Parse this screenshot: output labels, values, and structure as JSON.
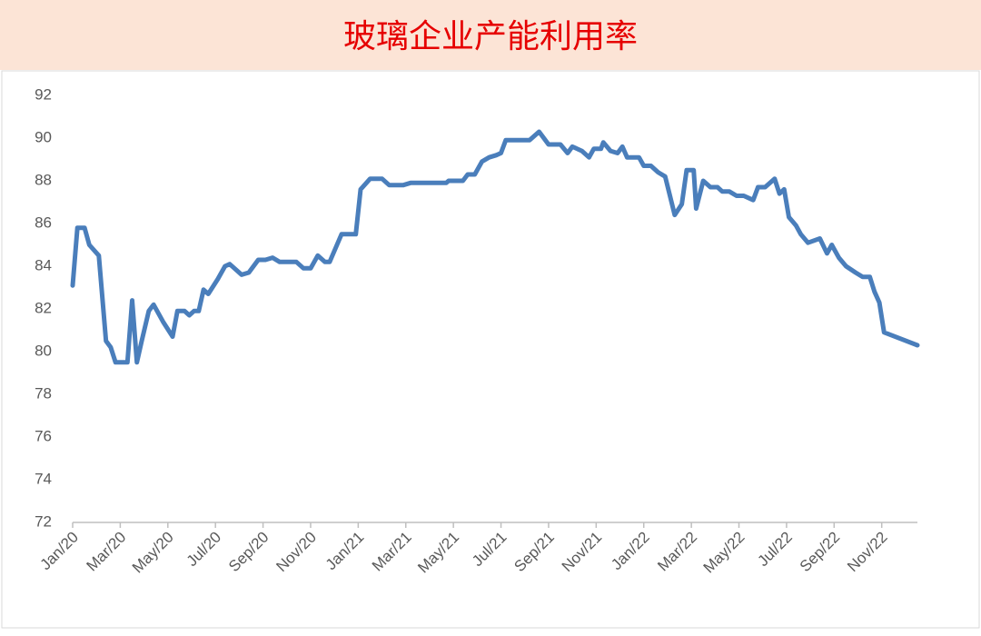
{
  "chart_data": {
    "type": "line",
    "title": "玻璃企业产能利用率",
    "series": [
      {
        "name": "玻璃企业产能利用率",
        "color": "#4a7ebb",
        "x": [
          0,
          0.2,
          0.5,
          0.7,
          1.1,
          1.4,
          1.6,
          1.8,
          2.3,
          2.5,
          2.7,
          2.9,
          3.2,
          3.4,
          3.8,
          4.2,
          4.4,
          4.7,
          4.9,
          5.1,
          5.3,
          5.5,
          5.7,
          6.1,
          6.4,
          6.6,
          7.1,
          7.4,
          7.8,
          8.1,
          8.4,
          8.7,
          9.4,
          9.7,
          10.0,
          10.3,
          10.6,
          10.8,
          11.3,
          11.9,
          12.1,
          12.5,
          13.0,
          13.3,
          13.9,
          14.2,
          15.7,
          15.8,
          16.4,
          16.6,
          16.9,
          17.2,
          17.5,
          17.8,
          18.0,
          18.2,
          19.2,
          19.6,
          20.0,
          20.5,
          20.8,
          21.0,
          21.4,
          21.7,
          21.9,
          22.2,
          22.3,
          22.6,
          22.9,
          23.1,
          23.3,
          23.8,
          24.0,
          24.3,
          24.6,
          24.9,
          25.3,
          25.6,
          25.8,
          26.1,
          26.2,
          26.5,
          26.8,
          27.1,
          27.3,
          27.6,
          27.9,
          28.2,
          28.6,
          28.8,
          29.1,
          29.5,
          29.7,
          29.9,
          30.1,
          30.4,
          30.6,
          30.9,
          31.4,
          31.7,
          31.9,
          32.2,
          32.5,
          32.9,
          33.2,
          33.5,
          33.7,
          33.9,
          34.1,
          35.5
        ],
        "values": [
          83.1,
          85.8,
          85.8,
          85.0,
          84.5,
          80.5,
          80.2,
          79.5,
          79.5,
          82.4,
          79.5,
          80.5,
          81.9,
          82.2,
          81.4,
          80.7,
          81.9,
          81.9,
          81.7,
          81.9,
          81.9,
          82.9,
          82.7,
          83.4,
          84.0,
          84.1,
          83.6,
          83.7,
          84.3,
          84.3,
          84.4,
          84.2,
          84.2,
          83.9,
          83.9,
          84.5,
          84.2,
          84.2,
          85.5,
          85.5,
          87.6,
          88.1,
          88.1,
          87.8,
          87.8,
          87.9,
          87.9,
          88.0,
          88.0,
          88.3,
          88.3,
          88.9,
          89.1,
          89.2,
          89.3,
          89.9,
          89.9,
          90.3,
          89.7,
          89.7,
          89.3,
          89.6,
          89.4,
          89.1,
          89.5,
          89.5,
          89.8,
          89.4,
          89.3,
          89.6,
          89.1,
          89.1,
          88.7,
          88.7,
          88.4,
          88.2,
          86.4,
          86.9,
          88.5,
          88.5,
          86.7,
          88.0,
          87.7,
          87.7,
          87.5,
          87.5,
          87.3,
          87.3,
          87.1,
          87.7,
          87.7,
          88.1,
          87.4,
          87.6,
          86.3,
          85.9,
          85.5,
          85.1,
          85.3,
          84.6,
          85.0,
          84.4,
          84.0,
          83.7,
          83.5,
          83.5,
          82.8,
          82.3,
          80.9,
          80.3
        ]
      }
    ],
    "xlim": [
      0,
      35.5
    ],
    "xticks": [
      {
        "value": 0,
        "label": "Jan/20"
      },
      {
        "value": 2,
        "label": "Mar/20"
      },
      {
        "value": 4,
        "label": "May/20"
      },
      {
        "value": 6,
        "label": "Jul/20"
      },
      {
        "value": 8,
        "label": "Sep/20"
      },
      {
        "value": 10,
        "label": "Nov/20"
      },
      {
        "value": 12,
        "label": "Jan/21"
      },
      {
        "value": 14,
        "label": "Mar/21"
      },
      {
        "value": 16,
        "label": "May/21"
      },
      {
        "value": 18,
        "label": "Jul/21"
      },
      {
        "value": 20,
        "label": "Sep/21"
      },
      {
        "value": 22,
        "label": "Nov/21"
      },
      {
        "value": 24,
        "label": "Jan/22"
      },
      {
        "value": 26,
        "label": "Mar/22"
      },
      {
        "value": 28,
        "label": "May/22"
      },
      {
        "value": 30,
        "label": "Jul/22"
      },
      {
        "value": 32,
        "label": "Sep/22"
      },
      {
        "value": 34,
        "label": "Nov/22"
      }
    ],
    "ylim": [
      72,
      92
    ],
    "yticks": [
      72,
      74,
      76,
      78,
      80,
      82,
      84,
      86,
      88,
      90,
      92
    ],
    "grid": false
  }
}
